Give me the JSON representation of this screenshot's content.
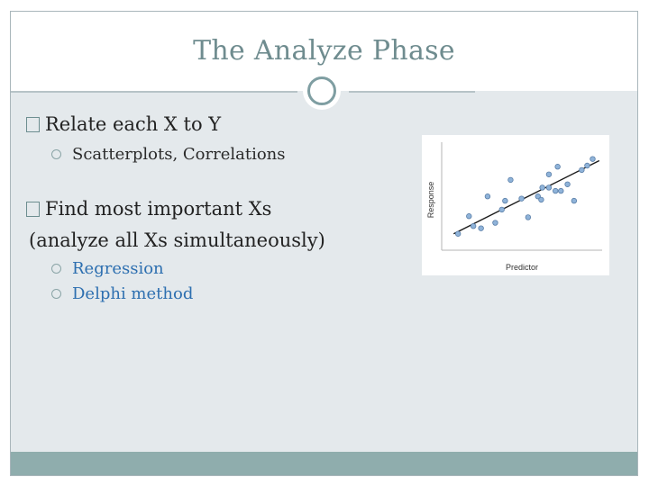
{
  "slide": {
    "title": "The Analyze Phase",
    "bullets": [
      {
        "text": "Relate each X to Y",
        "sub": [
          "Scatterplots, Correlations"
        ]
      },
      {
        "text": "Find most important Xs",
        "text_line2": "(analyze all Xs simultaneously)",
        "sub": [
          "Regression",
          "Delphi method"
        ]
      }
    ]
  },
  "colors": {
    "title": "#6f8c8f",
    "accent_ring": "#7f9ea2",
    "bottom_bar": "#8fadad",
    "sub_bullet_blue": "#2d6fb0",
    "slide_background": "#e4e9ec"
  },
  "chart_data": {
    "type": "scatter",
    "xlabel": "Predictor",
    "ylabel": "Response",
    "grid": false,
    "trendline": true,
    "points": [
      [
        1.0,
        1.0
      ],
      [
        2.0,
        2.6
      ],
      [
        2.4,
        1.7
      ],
      [
        3.1,
        1.5
      ],
      [
        3.7,
        4.4
      ],
      [
        4.4,
        2.0
      ],
      [
        5.0,
        3.2
      ],
      [
        5.3,
        4.0
      ],
      [
        5.8,
        5.9
      ],
      [
        6.8,
        4.2
      ],
      [
        7.4,
        2.5
      ],
      [
        8.3,
        4.4
      ],
      [
        8.6,
        4.1
      ],
      [
        9.3,
        6.4
      ],
      [
        8.7,
        5.2
      ],
      [
        9.3,
        5.2
      ],
      [
        9.9,
        4.9
      ],
      [
        10.1,
        7.1
      ],
      [
        10.4,
        4.9
      ],
      [
        11.0,
        5.5
      ],
      [
        11.6,
        4.0
      ],
      [
        12.3,
        6.8
      ],
      [
        12.8,
        7.2
      ],
      [
        13.3,
        7.8
      ]
    ],
    "fit": {
      "slope": 0.5,
      "intercept": 0.7
    },
    "xlim": [
      0,
      14
    ],
    "ylim": [
      0,
      9
    ]
  }
}
